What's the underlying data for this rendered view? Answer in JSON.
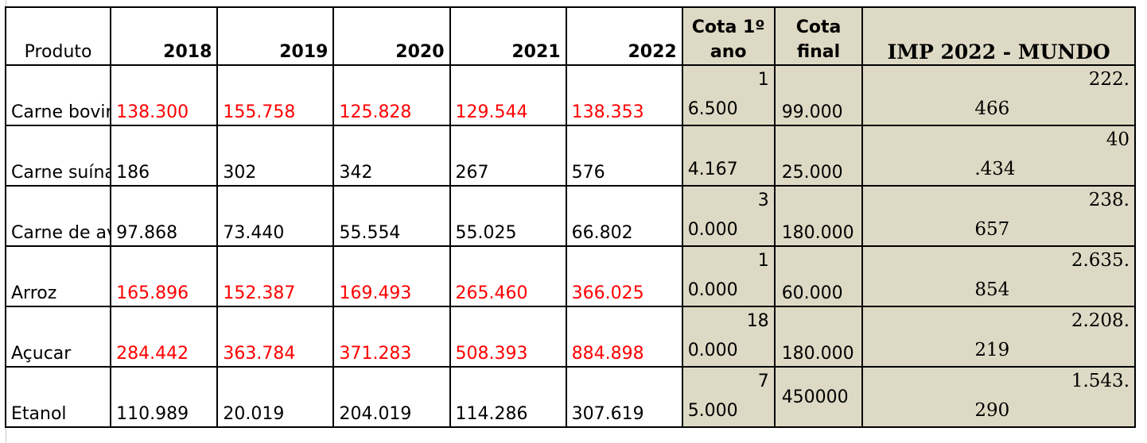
{
  "headers": {
    "produto": "Produto",
    "y2018": "2018",
    "y2019": "2019",
    "y2020": "2020",
    "y2021": "2021",
    "y2022": "2022",
    "cota1": "Cota 1º ano",
    "cota_final": "Cota final",
    "imp": "IMP 2022 - MUNDO"
  },
  "rows": [
    {
      "produto": "Carne bovina",
      "v2018": "138.300",
      "v2019": "155.758",
      "v2020": "125.828",
      "v2021": "129.544",
      "v2022": "138.353",
      "red": true,
      "cota1_top": "1",
      "cota1_bot": "6.500",
      "cota_final": "99.000",
      "imp_top": "222.",
      "imp_bot": "466"
    },
    {
      "produto": "Carne suína",
      "v2018": "186",
      "v2019": "302",
      "v2020": "342",
      "v2021": "267",
      "v2022": "576",
      "red": false,
      "cota1_top": "",
      "cota1_bot": "4.167",
      "cota_final": "25.000",
      "imp_top": "40",
      "imp_bot": ".434"
    },
    {
      "produto": "Carne de aves",
      "v2018": "97.868",
      "v2019": "73.440",
      "v2020": "55.554",
      "v2021": "55.025",
      "v2022": "66.802",
      "red": false,
      "cota1_top": "3",
      "cota1_bot": "0.000",
      "cota_final": "180.000",
      "imp_top": "238.",
      "imp_bot": "657"
    },
    {
      "produto": "Arroz",
      "v2018": "165.896",
      "v2019": "152.387",
      "v2020": "169.493",
      "v2021": "265.460",
      "v2022": "366.025",
      "red": true,
      "cota1_top": "1",
      "cota1_bot": "0.000",
      "cota_final": "60.000",
      "imp_top": "2.635.",
      "imp_bot": "854"
    },
    {
      "produto": "Açucar",
      "v2018": "284.442",
      "v2019": "363.784",
      "v2020": "371.283",
      "v2021": "508.393",
      "v2022": "884.898",
      "red": true,
      "cota1_top": "18",
      "cota1_bot": "0.000",
      "cota_final": "180.000",
      "imp_top": "2.208.",
      "imp_bot": "219"
    },
    {
      "produto": "Etanol",
      "v2018": "110.989",
      "v2019": "20.019",
      "v2020": "204.019",
      "v2021": "114.286",
      "v2022": "307.619",
      "red": false,
      "cota1_top": "7",
      "cota1_bot": "5.000",
      "cota_final": "450000",
      "imp_top": "1.543.",
      "imp_bot": "290"
    }
  ]
}
